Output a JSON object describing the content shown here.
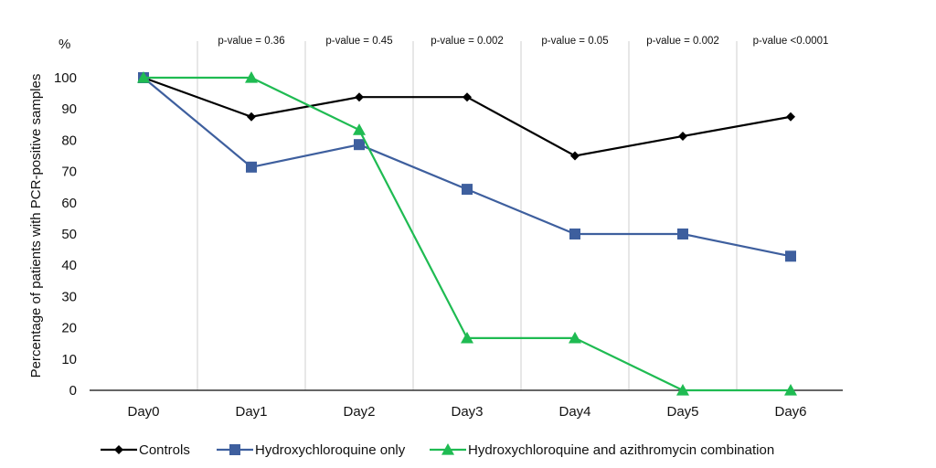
{
  "chart_data": {
    "type": "line",
    "categories": [
      "Day0",
      "Day1",
      "Day2",
      "Day3",
      "Day4",
      "Day5",
      "Day6"
    ],
    "ylabel": "Percentage of patients with PCR-positive samples",
    "yunit": "%",
    "ylim": [
      0,
      100
    ],
    "yticks": [
      0,
      10,
      20,
      30,
      40,
      50,
      60,
      70,
      80,
      90,
      100
    ],
    "pvalues": [
      "p-value = 0.36",
      "p-value = 0.45",
      "p-value = 0.002",
      "p-value = 0.05",
      "p-value = 0.002",
      "p-value <0.0001"
    ],
    "series": [
      {
        "name": "Controls",
        "color": "#000000",
        "marker": "diamond",
        "values": [
          100,
          87.5,
          93.8,
          93.8,
          75,
          81.3,
          87.5
        ]
      },
      {
        "name": "Hydroxychloroquine only",
        "color": "#3e5f9e",
        "marker": "square",
        "values": [
          100,
          71.4,
          78.6,
          64.3,
          50,
          50,
          42.9
        ]
      },
      {
        "name": "Hydroxychloroquine and azithromycin combination",
        "color": "#1fbb52",
        "marker": "triangle",
        "values": [
          100,
          100,
          83.3,
          16.7,
          16.7,
          0,
          0
        ]
      }
    ],
    "legend_position": "bottom"
  }
}
